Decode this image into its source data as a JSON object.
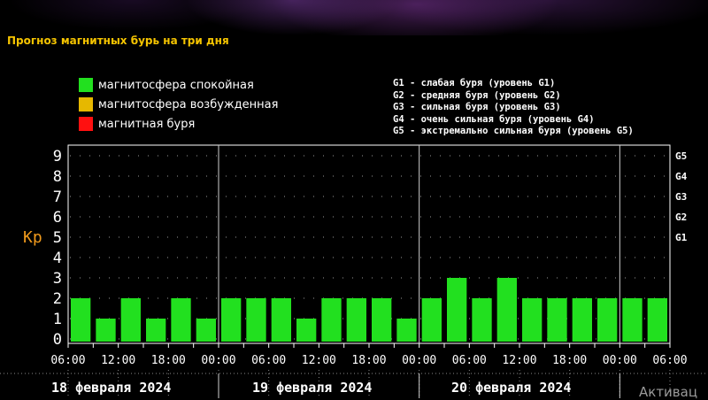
{
  "title": "Прогноз магнитных бурь на три дня",
  "legend": [
    {
      "label": "магнитосфера спокойная",
      "color": "#22e01f"
    },
    {
      "label": "магнитосфера возбужденная",
      "color": "#e6b800"
    },
    {
      "label": "магнитная буря",
      "color": "#ff1010"
    }
  ],
  "g_levels": [
    "G1 - слабая буря (уровень G1)",
    "G2 - средняя буря (уровень G2)",
    "G3 - сильная буря (уровень G3)",
    "G4 - очень сильная буря (уровень G4)",
    "G5 - экстремально сильная буря (уровень G5)"
  ],
  "watermark": "Активац",
  "chart_data": {
    "type": "bar",
    "ylabel": "Kp",
    "ylim": [
      0,
      9
    ],
    "yticks": [
      "0",
      "1",
      "2",
      "3",
      "4",
      "5",
      "6",
      "7",
      "8",
      "9"
    ],
    "right_ticks": [
      {
        "value": 5,
        "label": "G1"
      },
      {
        "value": 6,
        "label": "G2"
      },
      {
        "value": 7,
        "label": "G3"
      },
      {
        "value": 8,
        "label": "G4"
      },
      {
        "value": 9,
        "label": "G5"
      }
    ],
    "time_labels": [
      "06:00",
      "12:00",
      "18:00",
      "00:00",
      "06:00",
      "12:00",
      "18:00",
      "00:00",
      "06:00",
      "12:00",
      "18:00",
      "00:00",
      "06:00"
    ],
    "days": [
      "18 февраля 2024",
      "19 февраля 2024",
      "20 февраля 2024"
    ],
    "values": [
      2,
      1,
      2,
      1,
      2,
      1,
      2,
      2,
      2,
      1,
      2,
      2,
      2,
      1,
      2,
      3,
      2,
      3,
      2,
      2,
      2,
      2,
      2,
      2
    ],
    "bar_color": "#22e01f",
    "grid": "dotted"
  }
}
